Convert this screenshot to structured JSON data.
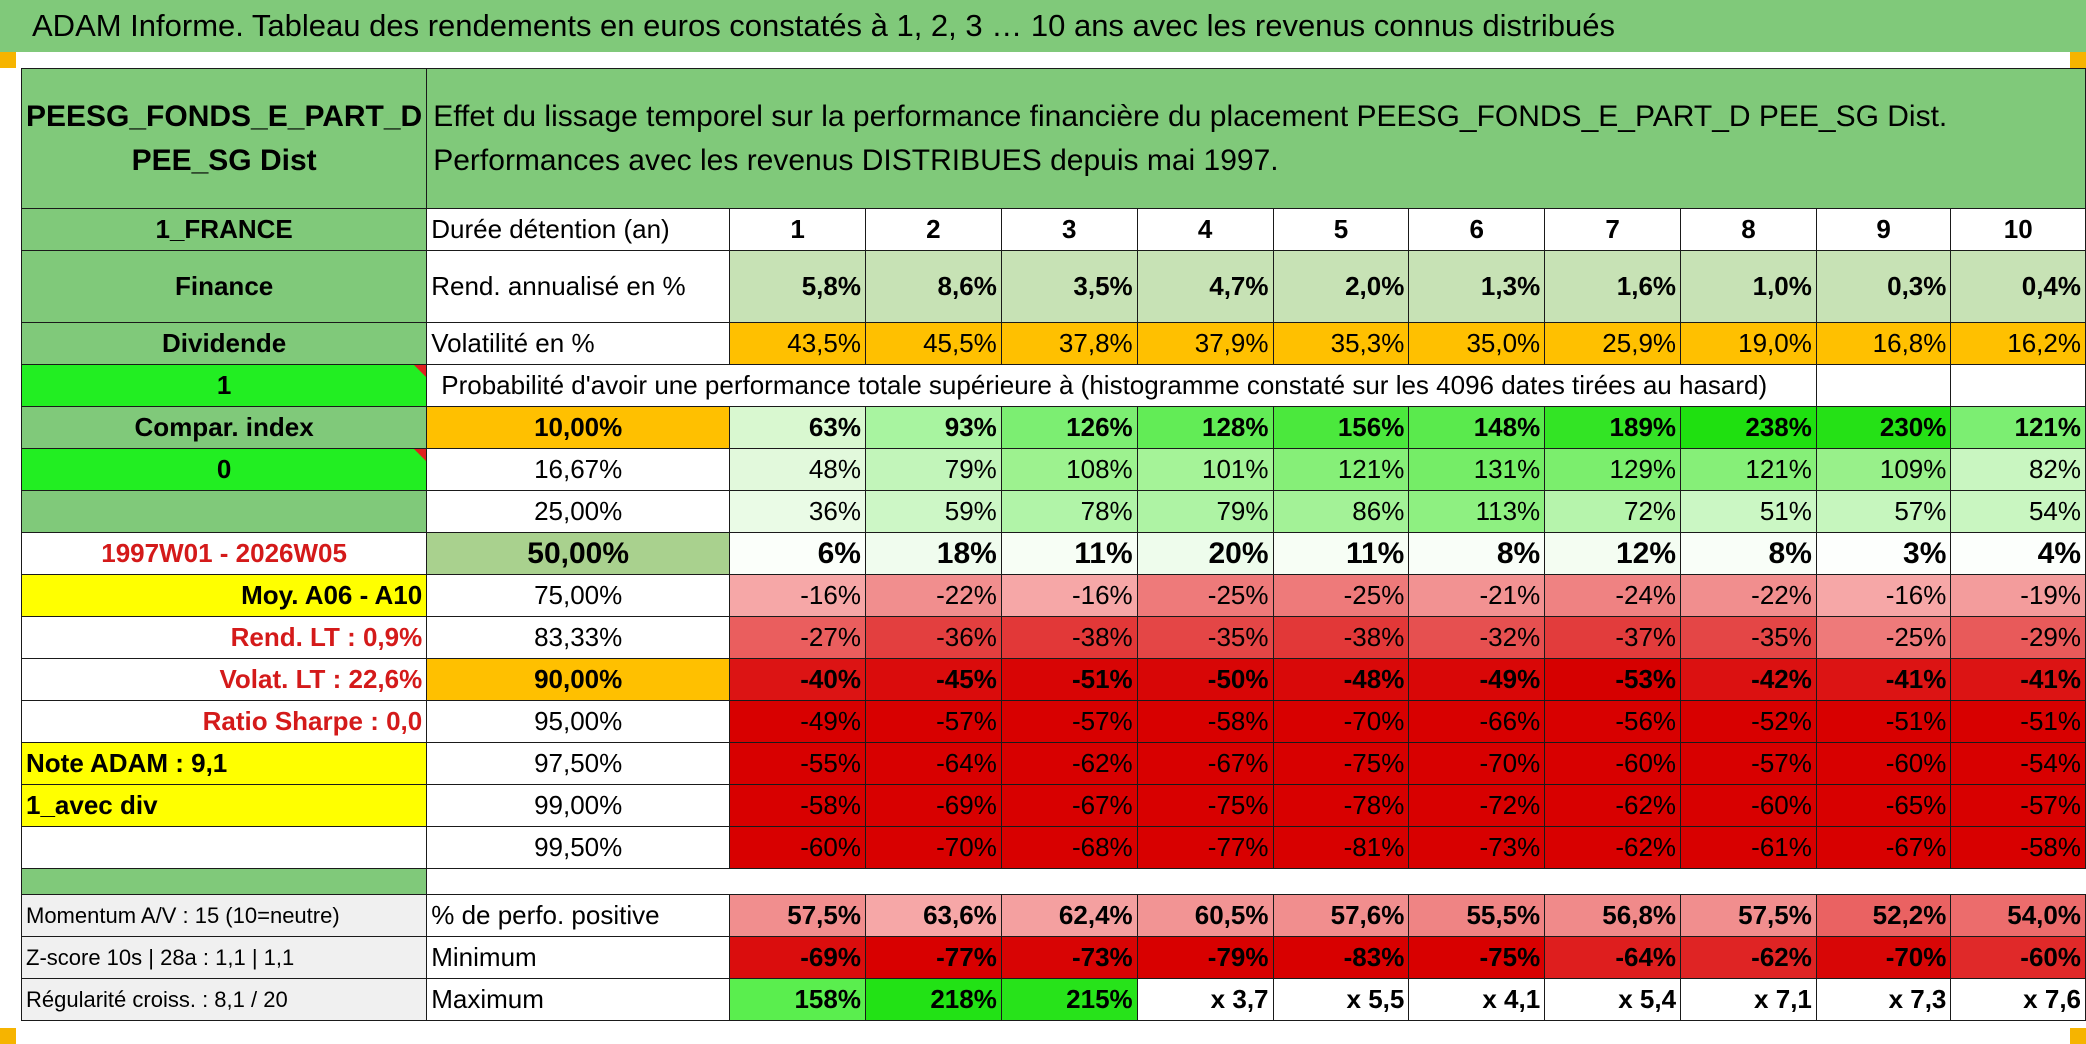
{
  "title": "ADAM Informe. Tableau des rendements en euros constatés à 1, 2, 3 … 10 ans avec les revenus connus distribués",
  "fund": {
    "name": "PEESG_FONDS_E_PART_D PEE_SG Dist",
    "description": "Effet du lissage temporel sur la performance financière du placement PEESG_FONDS_E_PART_D PEE_SG Dist. Performances avec les revenus DISTRIBUES depuis mai 1997."
  },
  "side": {
    "country": "1_FRANCE",
    "sector": "Finance",
    "type": "Dividende",
    "flag1": "1",
    "compar": "Compar. index",
    "flag2": "0",
    "period": "1997W01 - 2026W05",
    "moy": "Moy. A06 - A10",
    "rend_lt": "Rend. LT :   0,9%",
    "volat_lt": "Volat. LT :   22,6%",
    "sharpe": "Ratio Sharpe :    0,0",
    "note": "Note ADAM : 9,1",
    "div": "1_avec div",
    "momentum": "Momentum A/V : 15 (10=neutre)",
    "zscore": "Z-score 10s | 28a : 1,1 | 1,1",
    "regularite": "Régularité croiss. : 8,1 / 20"
  },
  "durations_label": "Durée détention (an)",
  "durations": [
    "1",
    "2",
    "3",
    "4",
    "5",
    "6",
    "7",
    "8",
    "9",
    "10"
  ],
  "rend": {
    "label": "Rend. annualisé en %",
    "values": [
      "5,8%",
      "8,6%",
      "3,5%",
      "4,7%",
      "2,0%",
      "1,3%",
      "1,6%",
      "1,0%",
      "0,3%",
      "0,4%"
    ]
  },
  "vol": {
    "label": "Volatilité en %",
    "values": [
      "43,5%",
      "45,5%",
      "37,8%",
      "37,9%",
      "35,3%",
      "35,0%",
      "25,9%",
      "19,0%",
      "16,8%",
      "16,2%"
    ]
  },
  "proba_label": "Probabilité d'avoir une performance totale supérieure à (histogramme constaté sur les 4096 dates tirées au hasard)",
  "proba_rows": [
    {
      "pct": "10,00%",
      "values": [
        "63%",
        "93%",
        "126%",
        "128%",
        "156%",
        "148%",
        "189%",
        "238%",
        "230%",
        "121%"
      ]
    },
    {
      "pct": "16,67%",
      "values": [
        "48%",
        "79%",
        "108%",
        "101%",
        "121%",
        "131%",
        "129%",
        "121%",
        "109%",
        "82%"
      ]
    },
    {
      "pct": "25,00%",
      "values": [
        "36%",
        "59%",
        "78%",
        "79%",
        "86%",
        "113%",
        "72%",
        "51%",
        "57%",
        "54%"
      ]
    },
    {
      "pct": "50,00%",
      "values": [
        "6%",
        "18%",
        "11%",
        "20%",
        "11%",
        "8%",
        "12%",
        "8%",
        "3%",
        "4%"
      ]
    },
    {
      "pct": "75,00%",
      "values": [
        "-16%",
        "-22%",
        "-16%",
        "-25%",
        "-25%",
        "-21%",
        "-24%",
        "-22%",
        "-16%",
        "-19%"
      ]
    },
    {
      "pct": "83,33%",
      "values": [
        "-27%",
        "-36%",
        "-38%",
        "-35%",
        "-38%",
        "-32%",
        "-37%",
        "-35%",
        "-25%",
        "-29%"
      ]
    },
    {
      "pct": "90,00%",
      "values": [
        "-40%",
        "-45%",
        "-51%",
        "-50%",
        "-48%",
        "-49%",
        "-53%",
        "-42%",
        "-41%",
        "-41%"
      ]
    },
    {
      "pct": "95,00%",
      "values": [
        "-49%",
        "-57%",
        "-57%",
        "-58%",
        "-70%",
        "-66%",
        "-56%",
        "-52%",
        "-51%",
        "-51%"
      ]
    },
    {
      "pct": "97,50%",
      "values": [
        "-55%",
        "-64%",
        "-62%",
        "-67%",
        "-75%",
        "-70%",
        "-60%",
        "-57%",
        "-60%",
        "-54%"
      ]
    },
    {
      "pct": "99,00%",
      "values": [
        "-58%",
        "-69%",
        "-67%",
        "-75%",
        "-78%",
        "-72%",
        "-62%",
        "-60%",
        "-65%",
        "-57%"
      ]
    },
    {
      "pct": "99,50%",
      "values": [
        "-60%",
        "-70%",
        "-68%",
        "-77%",
        "-81%",
        "-73%",
        "-62%",
        "-61%",
        "-67%",
        "-58%"
      ]
    }
  ],
  "positive": {
    "label": "% de perfo. positive",
    "values": [
      "57,5%",
      "63,6%",
      "62,4%",
      "60,5%",
      "57,6%",
      "55,5%",
      "56,8%",
      "57,5%",
      "52,2%",
      "54,0%"
    ]
  },
  "minimum": {
    "label": "Minimum",
    "values": [
      "-69%",
      "-77%",
      "-73%",
      "-79%",
      "-83%",
      "-75%",
      "-64%",
      "-62%",
      "-70%",
      "-60%"
    ]
  },
  "maximum": {
    "label": "Maximum",
    "values": [
      "158%",
      "218%",
      "215%",
      "x 3,7",
      "x 5,5",
      "x 4,1",
      "x 5,4",
      "x 7,1",
      "x 7,3",
      "x 7,6"
    ]
  },
  "colors": {
    "title_bg": "#80c97a",
    "label_green": "#80c97a",
    "flag_green": "#22ee22",
    "yellow": "#ffff00",
    "orange": "#ffc000",
    "rend_green": "#c7e2b5",
    "side_red_text": "#d41a1a"
  }
}
